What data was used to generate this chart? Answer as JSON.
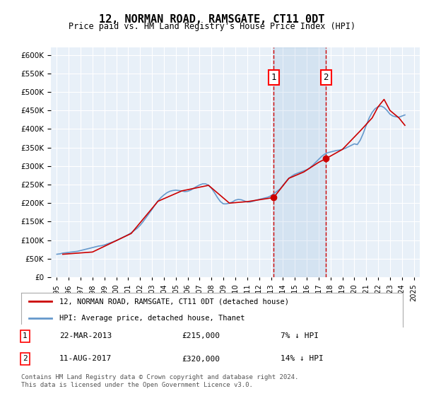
{
  "title": "12, NORMAN ROAD, RAMSGATE, CT11 0DT",
  "subtitle": "Price paid vs. HM Land Registry's House Price Index (HPI)",
  "ylabel_ticks": [
    "£0",
    "£50K",
    "£100K",
    "£150K",
    "£200K",
    "£250K",
    "£300K",
    "£350K",
    "£400K",
    "£450K",
    "£500K",
    "£550K",
    "£600K"
  ],
  "ytick_values": [
    0,
    50000,
    100000,
    150000,
    200000,
    250000,
    300000,
    350000,
    400000,
    450000,
    500000,
    550000,
    600000
  ],
  "ylim": [
    0,
    620000
  ],
  "xlim_start": 1994.5,
  "xlim_end": 2025.5,
  "background_color": "#ffffff",
  "plot_bg_color": "#e8f0f8",
  "grid_color": "#ffffff",
  "hpi_color": "#6699cc",
  "price_color": "#cc0000",
  "sale1_x": 2013.22,
  "sale1_y": 215000,
  "sale2_x": 2017.61,
  "sale2_y": 320000,
  "legend_house": "12, NORMAN ROAD, RAMSGATE, CT11 0DT (detached house)",
  "legend_hpi": "HPI: Average price, detached house, Thanet",
  "annotation1_label": "1",
  "annotation1_date": "22-MAR-2013",
  "annotation1_price": "£215,000",
  "annotation1_hpi": "7% ↓ HPI",
  "annotation2_label": "2",
  "annotation2_date": "11-AUG-2017",
  "annotation2_price": "£320,000",
  "annotation2_hpi": "14% ↓ HPI",
  "footer": "Contains HM Land Registry data © Crown copyright and database right 2024.\nThis data is licensed under the Open Government Licence v3.0.",
  "hpi_years": [
    1995,
    1995.25,
    1995.5,
    1995.75,
    1996,
    1996.25,
    1996.5,
    1996.75,
    1997,
    1997.25,
    1997.5,
    1997.75,
    1998,
    1998.25,
    1998.5,
    1998.75,
    1999,
    1999.25,
    1999.5,
    1999.75,
    2000,
    2000.25,
    2000.5,
    2000.75,
    2001,
    2001.25,
    2001.5,
    2001.75,
    2002,
    2002.25,
    2002.5,
    2002.75,
    2003,
    2003.25,
    2003.5,
    2003.75,
    2004,
    2004.25,
    2004.5,
    2004.75,
    2005,
    2005.25,
    2005.5,
    2005.75,
    2006,
    2006.25,
    2006.5,
    2006.75,
    2007,
    2007.25,
    2007.5,
    2007.75,
    2008,
    2008.25,
    2008.5,
    2008.75,
    2009,
    2009.25,
    2009.5,
    2009.75,
    2010,
    2010.25,
    2010.5,
    2010.75,
    2011,
    2011.25,
    2011.5,
    2011.75,
    2012,
    2012.25,
    2012.5,
    2012.75,
    2013,
    2013.25,
    2013.5,
    2013.75,
    2014,
    2014.25,
    2014.5,
    2014.75,
    2015,
    2015.25,
    2015.5,
    2015.75,
    2016,
    2016.25,
    2016.5,
    2016.75,
    2017,
    2017.25,
    2017.5,
    2017.75,
    2018,
    2018.25,
    2018.5,
    2018.75,
    2019,
    2019.25,
    2019.5,
    2019.75,
    2020,
    2020.25,
    2020.5,
    2020.75,
    2021,
    2021.25,
    2021.5,
    2021.75,
    2022,
    2022.25,
    2022.5,
    2022.75,
    2023,
    2023.25,
    2023.5,
    2023.75,
    2024,
    2024.25
  ],
  "hpi_values": [
    62000,
    63000,
    65000,
    66000,
    67000,
    68000,
    69000,
    70000,
    72000,
    74000,
    76000,
    78000,
    80000,
    82000,
    84000,
    85000,
    87000,
    90000,
    93000,
    96000,
    99000,
    103000,
    107000,
    111000,
    115000,
    120000,
    126000,
    132000,
    140000,
    150000,
    161000,
    172000,
    183000,
    195000,
    206000,
    215000,
    222000,
    228000,
    232000,
    234000,
    235000,
    234000,
    233000,
    231000,
    232000,
    235000,
    240000,
    245000,
    249000,
    252000,
    252000,
    248000,
    240000,
    228000,
    215000,
    204000,
    198000,
    198000,
    200000,
    203000,
    208000,
    210000,
    209000,
    206000,
    203000,
    203000,
    205000,
    208000,
    210000,
    212000,
    214000,
    216000,
    220000,
    226000,
    232000,
    238000,
    248000,
    258000,
    267000,
    273000,
    278000,
    281000,
    284000,
    287000,
    290000,
    295000,
    302000,
    310000,
    318000,
    326000,
    332000,
    336000,
    338000,
    340000,
    342000,
    343000,
    345000,
    348000,
    352000,
    356000,
    360000,
    358000,
    370000,
    388000,
    410000,
    430000,
    445000,
    455000,
    460000,
    462000,
    458000,
    450000,
    440000,
    435000,
    433000,
    432000,
    435000,
    438000
  ],
  "price_years": [
    1995.5,
    1998.0,
    2001.25,
    2003.5,
    2005.5,
    2007.75,
    2009.5,
    2011.0,
    2013.22,
    2014.5,
    2015.75,
    2017.0,
    2017.61,
    2019.0,
    2020.5,
    2021.5,
    2022.0,
    2022.5,
    2023.0,
    2023.75,
    2024.25
  ],
  "price_values": [
    62000,
    68000,
    118000,
    205000,
    233000,
    248000,
    200000,
    204000,
    215000,
    267000,
    284000,
    310000,
    320000,
    345000,
    395000,
    430000,
    460000,
    480000,
    450000,
    430000,
    410000
  ]
}
